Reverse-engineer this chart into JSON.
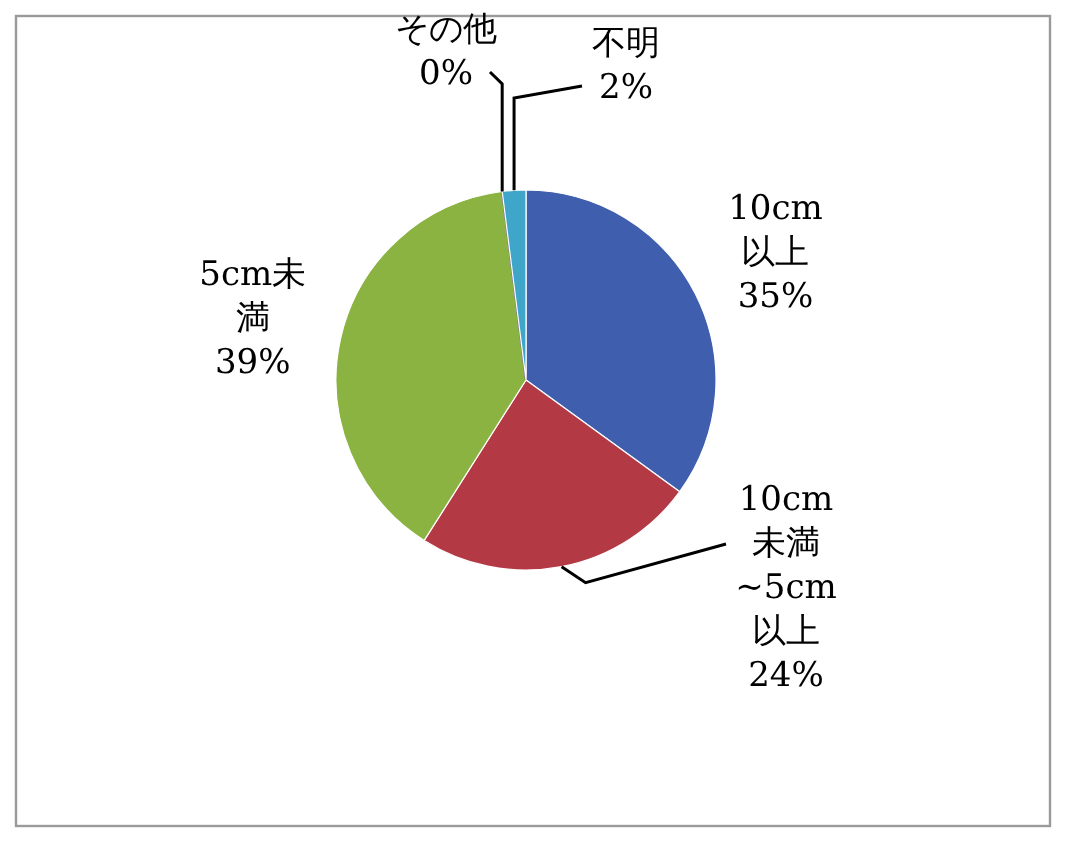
{
  "chart_data": {
    "type": "pie",
    "categories": [
      "10cm以上",
      "10cm未満~5cm以上",
      "5cm未満",
      "その他",
      "不明"
    ],
    "values": [
      35,
      24,
      39,
      0,
      2
    ],
    "colors": [
      "#3f5fae",
      "#b33a45",
      "#8bb341",
      "#7a5ba0",
      "#3fa6c9"
    ],
    "value_labels": [
      "35%",
      "24%",
      "39%",
      "0%",
      "2%"
    ]
  }
}
